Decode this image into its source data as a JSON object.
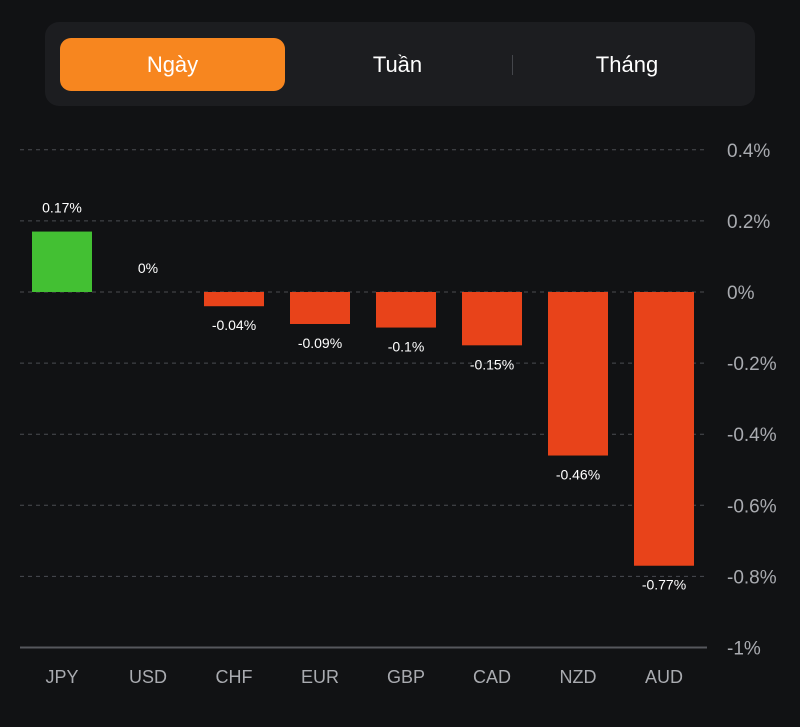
{
  "tabs": [
    {
      "label": "Ngày",
      "active": true
    },
    {
      "label": "Tuần",
      "active": false
    },
    {
      "label": "Tháng",
      "active": false
    }
  ],
  "colors": {
    "accent": "#f7861f",
    "positive": "#43c033",
    "negative": "#e8431a",
    "background": "#111214"
  },
  "chart_data": {
    "type": "bar",
    "categories": [
      "JPY",
      "USD",
      "CHF",
      "EUR",
      "GBP",
      "CAD",
      "NZD",
      "AUD"
    ],
    "values": [
      0.17,
      0,
      -0.04,
      -0.09,
      -0.1,
      -0.15,
      -0.46,
      -0.77
    ],
    "value_labels": [
      "0.17%",
      "0%",
      "-0.04%",
      "-0.09%",
      "-0.1%",
      "-0.15%",
      "-0.46%",
      "-0.77%"
    ],
    "yticks": [
      0.4,
      0.2,
      0,
      -0.2,
      -0.4,
      -0.6,
      -0.8,
      -1
    ],
    "ytick_labels": [
      "0.4%",
      "0.2%",
      "0%",
      "-0.2%",
      "-0.4%",
      "-0.6%",
      "-0.8%",
      "-1%"
    ],
    "ylim": [
      -1,
      0.4
    ],
    "y_axis_position": "right",
    "grid": true
  }
}
